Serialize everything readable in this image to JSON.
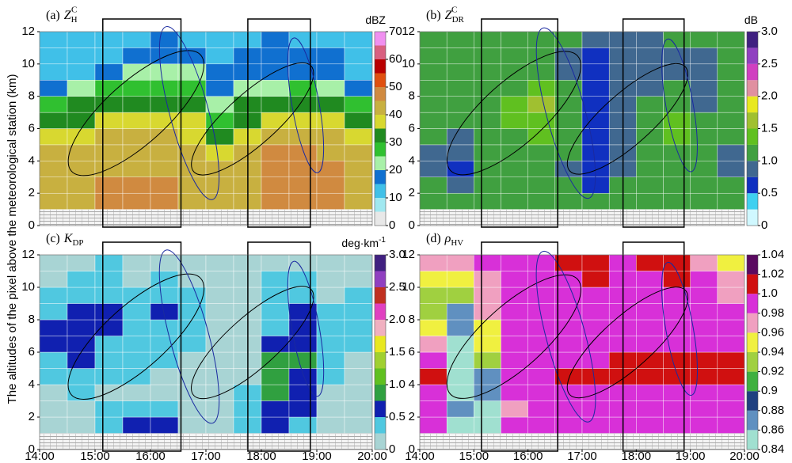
{
  "y_label": "The altitudes of the pixel above the meteorological station (km)",
  "chart_data": [
    {
      "type": "heatmap",
      "label": "(a)",
      "symbol": "Z",
      "sub": "H",
      "sup": "C",
      "unit": "dBZ",
      "xlim": [
        14,
        20
      ],
      "ylim": [
        0,
        12
      ],
      "yticks": [
        0,
        2,
        4,
        6,
        8,
        10,
        12
      ],
      "xbins": [
        14,
        14.5,
        15,
        15.5,
        16,
        16.5,
        17,
        17.5,
        18,
        18.5,
        19,
        19.5,
        20
      ],
      "ybins": [
        0,
        1,
        2,
        3,
        4,
        5,
        6,
        7,
        8,
        9,
        10,
        11,
        12
      ],
      "clim": [
        0,
        70
      ],
      "cticks": [
        0,
        10,
        20,
        30,
        40,
        50,
        60,
        70
      ],
      "colormap": [
        "#e8e8e8",
        "#a0e8f0",
        "#40c0e8",
        "#1070d0",
        "#a8f0a8",
        "#30c030",
        "#208a20",
        "#d8d830",
        "#c8b040",
        "#d08a40",
        "#e05010",
        "#b80000",
        "#d86080",
        "#f090f0"
      ],
      "z": [
        [
          null,
          null,
          null,
          null,
          null,
          null,
          null,
          null,
          null,
          null,
          null,
          null
        ],
        [
          44,
          44,
          46,
          46,
          46,
          44,
          44,
          44,
          46,
          48,
          46,
          44
        ],
        [
          44,
          44,
          45,
          46,
          46,
          44,
          42,
          44,
          46,
          48,
          46,
          44
        ],
        [
          42,
          42,
          44,
          44,
          44,
          42,
          40,
          42,
          46,
          47,
          45,
          42
        ],
        [
          40,
          40,
          42,
          42,
          42,
          40,
          36,
          40,
          45,
          46,
          44,
          40
        ],
        [
          36,
          38,
          40,
          40,
          40,
          38,
          32,
          38,
          42,
          44,
          42,
          38
        ],
        [
          32,
          33,
          36,
          38,
          36,
          35,
          28,
          34,
          38,
          38,
          36,
          34
        ],
        [
          28,
          30,
          32,
          34,
          34,
          30,
          24,
          30,
          32,
          32,
          30,
          28
        ],
        [
          18,
          22,
          26,
          28,
          28,
          26,
          18,
          22,
          24,
          26,
          24,
          18
        ],
        [
          14,
          14,
          18,
          20,
          22,
          20,
          16,
          18,
          18,
          18,
          18,
          14
        ],
        [
          12,
          12,
          14,
          16,
          18,
          18,
          14,
          18,
          18,
          18,
          16,
          12
        ],
        [
          10,
          10,
          12,
          14,
          16,
          12,
          10,
          12,
          16,
          14,
          12,
          10
        ]
      ]
    },
    {
      "type": "heatmap",
      "label": "(b)",
      "symbol": "Z",
      "sub": "DR",
      "sup": "C",
      "unit": "dB",
      "xlim": [
        14,
        20
      ],
      "ylim": [
        0,
        12
      ],
      "yticks": [
        0,
        2,
        4,
        6,
        8,
        10,
        12
      ],
      "xbins": [
        14,
        14.5,
        15,
        15.5,
        16,
        16.5,
        17,
        17.5,
        18,
        18.5,
        19,
        19.5,
        20
      ],
      "ybins": [
        0,
        1,
        2,
        3,
        4,
        5,
        6,
        7,
        8,
        9,
        10,
        11,
        12
      ],
      "clim": [
        0,
        3
      ],
      "cticks": [
        0,
        0.5,
        {
          "value": 1,
          "label": "1.0"
        },
        1.5,
        {
          "value": 2,
          "label": "2.0"
        },
        2.5,
        {
          "value": 3,
          "label": "3.0"
        }
      ],
      "colormap": [
        "#d0f8ff",
        "#40d0f0",
        "#1030c0",
        "#406890",
        "#40a040",
        "#60c020",
        "#a0c030",
        "#e8e820",
        "#e090a0",
        "#d040c0",
        "#9040c0",
        "#402080"
      ],
      "z": [
        [
          null,
          null,
          null,
          null,
          null,
          null,
          null,
          null,
          null,
          null,
          null,
          null
        ],
        [
          1.1,
          1.2,
          1.1,
          1.0,
          1.0,
          1.1,
          1.0,
          1.1,
          1.2,
          1.1,
          1.0,
          1.0
        ],
        [
          1.0,
          0.9,
          1.0,
          1.1,
          1.0,
          1.0,
          0.7,
          1.0,
          1.2,
          1.1,
          1.0,
          1.0
        ],
        [
          0.8,
          0.7,
          1.0,
          1.1,
          1.1,
          0.9,
          0.6,
          0.9,
          1.1,
          1.2,
          1.0,
          0.9
        ],
        [
          0.9,
          0.8,
          1.0,
          1.1,
          1.2,
          1.0,
          0.5,
          0.8,
          1.1,
          1.2,
          1.0,
          0.9
        ],
        [
          1.0,
          0.9,
          1.1,
          1.2,
          1.3,
          1.1,
          0.6,
          0.9,
          1.2,
          1.3,
          1.0,
          1.0
        ],
        [
          1.0,
          1.0,
          1.1,
          1.3,
          1.4,
          1.1,
          0.6,
          0.9,
          1.1,
          1.3,
          1.0,
          1.0
        ],
        [
          1.1,
          1.0,
          1.1,
          1.3,
          1.5,
          1.2,
          0.7,
          0.8,
          1.0,
          1.1,
          0.9,
          1.0
        ],
        [
          1.1,
          1.0,
          1.0,
          1.2,
          1.3,
          1.1,
          0.7,
          0.8,
          0.9,
          1.0,
          0.8,
          1.0
        ],
        [
          1.2,
          1.1,
          1.0,
          1.1,
          1.1,
          0.9,
          0.6,
          0.8,
          0.9,
          0.9,
          0.8,
          1.1
        ],
        [
          1.1,
          1.1,
          1.0,
          1.0,
          1.0,
          0.9,
          0.7,
          0.8,
          0.8,
          0.9,
          0.9,
          1.0
        ],
        [
          1.0,
          1.1,
          1.0,
          1.0,
          1.0,
          1.0,
          0.9,
          0.9,
          0.9,
          1.0,
          1.0,
          1.0
        ]
      ]
    },
    {
      "type": "heatmap",
      "label": "(c)",
      "symbol": "K",
      "sub": "DP",
      "unit": "deg·km",
      "unit_sup": "-1",
      "xlim": [
        14,
        20
      ],
      "ylim": [
        0,
        12
      ],
      "yticks": [
        0,
        2,
        4,
        6,
        8,
        10,
        12
      ],
      "xticks": [
        {
          "value": 14,
          "label": "14:00"
        },
        {
          "value": 15,
          "label": "15:00"
        },
        {
          "value": 16,
          "label": "16:00"
        },
        {
          "value": 17,
          "label": "17:00"
        },
        {
          "value": 18,
          "label": "18:00"
        },
        {
          "value": 19,
          "label": "19:00"
        },
        {
          "value": 20,
          "label": "20:00"
        }
      ],
      "xbins": [
        14,
        14.5,
        15,
        15.5,
        16,
        16.5,
        17,
        17.5,
        18,
        18.5,
        19,
        19.5,
        20
      ],
      "ybins": [
        0,
        1,
        2,
        3,
        4,
        5,
        6,
        7,
        8,
        9,
        10,
        11,
        12
      ],
      "clim": [
        0,
        3
      ],
      "cticks": [
        0,
        0.5,
        {
          "value": 1,
          "label": "1.0"
        },
        1.5,
        {
          "value": 2,
          "label": "2.0"
        },
        2.5,
        {
          "value": 3,
          "label": "3.0"
        }
      ],
      "colormap": [
        "#a8d4d4",
        "#50c8e0",
        "#1020b0",
        "#30a040",
        "#60c020",
        "#a0d030",
        "#e8e820",
        "#f0b0c0",
        "#e040c0",
        "#c03020",
        "#9040c0",
        "#402080"
      ],
      "z": [
        [
          null,
          null,
          null,
          null,
          null,
          null,
          null,
          null,
          null,
          null,
          null,
          null
        ],
        [
          0.2,
          0.2,
          0.4,
          0.5,
          0.5,
          0.2,
          0.2,
          0.3,
          0.5,
          0.4,
          0.2,
          0.2
        ],
        [
          0.2,
          0.2,
          0.3,
          0.4,
          0.3,
          0.2,
          0.2,
          0.3,
          0.6,
          0.5,
          0.2,
          0.2
        ],
        [
          0.2,
          0.3,
          0.2,
          0.2,
          0.2,
          0.2,
          0.2,
          0.3,
          0.8,
          0.6,
          0.2,
          0.2
        ],
        [
          0.3,
          0.3,
          0.3,
          0.3,
          0.2,
          0.2,
          0.2,
          0.2,
          0.9,
          0.7,
          0.3,
          0.2
        ],
        [
          0.4,
          0.5,
          0.4,
          0.3,
          0.3,
          0.2,
          0.2,
          0.2,
          0.8,
          0.8,
          0.3,
          0.2
        ],
        [
          0.5,
          0.6,
          0.4,
          0.3,
          0.4,
          0.3,
          0.2,
          0.2,
          0.6,
          0.7,
          0.3,
          0.3
        ],
        [
          0.5,
          0.6,
          0.5,
          0.3,
          0.4,
          0.4,
          0.2,
          0.2,
          0.4,
          0.6,
          0.3,
          0.3
        ],
        [
          0.4,
          0.5,
          0.5,
          0.3,
          0.6,
          0.3,
          0.2,
          0.2,
          0.4,
          0.5,
          0.3,
          0.3
        ],
        [
          0.3,
          0.4,
          0.4,
          0.3,
          0.4,
          0.3,
          0.2,
          0.2,
          0.3,
          0.4,
          0.2,
          0.3
        ],
        [
          0.2,
          0.3,
          0.4,
          0.2,
          0.3,
          0.2,
          0.2,
          0.2,
          0.3,
          0.4,
          0.2,
          0.2
        ],
        [
          0.2,
          0.2,
          0.3,
          0.2,
          0.2,
          0.2,
          0.2,
          0.2,
          0.2,
          0.2,
          0.2,
          0.2
        ]
      ]
    },
    {
      "type": "heatmap",
      "label": "(d)",
      "symbol": "ρ",
      "sub": "HV",
      "xlim": [
        14,
        20
      ],
      "ylim": [
        0,
        12
      ],
      "yticks": [
        0,
        2,
        4,
        6,
        8,
        10,
        12
      ],
      "xticks": [
        {
          "value": 14,
          "label": "14:00"
        },
        {
          "value": 15,
          "label": "15:00"
        },
        {
          "value": 16,
          "label": "16:00"
        },
        {
          "value": 17,
          "label": "17:00"
        },
        {
          "value": 18,
          "label": "18:00"
        },
        {
          "value": 19,
          "label": "19:00"
        },
        {
          "value": 20,
          "label": "20:00"
        }
      ],
      "xbins": [
        14,
        14.5,
        15,
        15.5,
        16,
        16.5,
        17,
        17.5,
        18,
        18.5,
        19,
        19.5,
        20
      ],
      "ybins": [
        0,
        1,
        2,
        3,
        4,
        5,
        6,
        7,
        8,
        9,
        10,
        11,
        12
      ],
      "clim": [
        0.84,
        1.04
      ],
      "cticks": [
        0.84,
        0.86,
        0.88,
        0.9,
        0.92,
        0.94,
        0.96,
        0.98,
        {
          "value": 1,
          "label": "1.0"
        },
        1.02,
        1.04
      ],
      "colormap": [
        "#a0e0d0",
        "#6090c0",
        "#204080",
        "#40b040",
        "#a0d040",
        "#f0f040",
        "#f0a0c0",
        "#d830d8",
        "#d01010",
        "#5a0a60"
      ],
      "z": [
        [
          null,
          null,
          null,
          null,
          null,
          null,
          null,
          null,
          null,
          null,
          null,
          null
        ],
        [
          0.99,
          0.85,
          0.85,
          0.99,
          0.99,
          0.99,
          0.99,
          0.99,
          0.99,
          0.99,
          0.99,
          0.99
        ],
        [
          0.99,
          0.86,
          0.85,
          0.98,
          0.99,
          0.99,
          0.99,
          0.99,
          0.99,
          0.99,
          0.99,
          0.99
        ],
        [
          0.99,
          0.85,
          0.86,
          0.99,
          0.99,
          0.99,
          0.99,
          0.99,
          0.99,
          0.99,
          0.99,
          0.99
        ],
        [
          1.01,
          0.85,
          0.87,
          0.99,
          0.99,
          1.01,
          1.01,
          1.01,
          1.01,
          1.01,
          1.01,
          1.01
        ],
        [
          0.99,
          0.85,
          0.93,
          0.99,
          0.99,
          0.99,
          0.99,
          1.01,
          1.01,
          1.01,
          1.01,
          1.01
        ],
        [
          0.97,
          0.85,
          0.95,
          0.99,
          0.99,
          0.99,
          0.99,
          0.99,
          0.99,
          0.99,
          0.99,
          0.99
        ],
        [
          0.95,
          0.86,
          0.96,
          0.99,
          0.99,
          0.99,
          0.99,
          0.99,
          0.99,
          0.99,
          0.99,
          0.99
        ],
        [
          0.93,
          0.87,
          0.97,
          0.99,
          0.99,
          0.99,
          0.99,
          0.99,
          0.99,
          0.99,
          0.99,
          0.99
        ],
        [
          0.92,
          0.93,
          0.98,
          0.99,
          0.99,
          0.99,
          0.99,
          0.99,
          0.99,
          0.99,
          0.99,
          0.97
        ],
        [
          0.95,
          0.96,
          0.98,
          0.99,
          0.99,
          0.99,
          1.01,
          0.99,
          0.99,
          1.01,
          0.99,
          0.97
        ],
        [
          0.97,
          0.97,
          0.99,
          0.99,
          0.99,
          1.01,
          1.01,
          0.99,
          1.01,
          1.01,
          0.97,
          0.96
        ]
      ]
    }
  ]
}
